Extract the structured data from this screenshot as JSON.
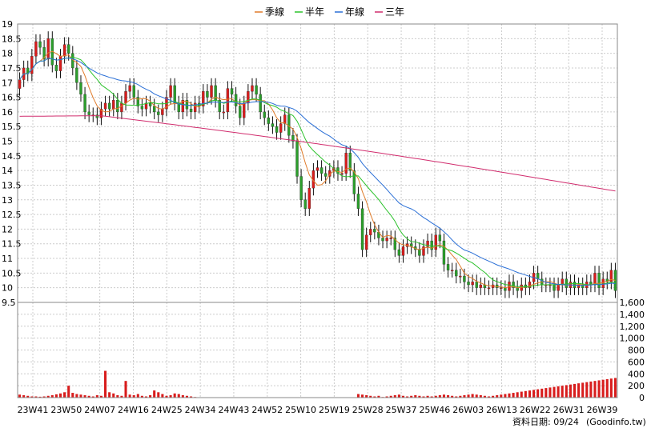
{
  "chart_data": [
    {
      "type": "candlestick",
      "title": "",
      "xlabel": "",
      "ylabel": "",
      "ylim": [
        9.5,
        19
      ],
      "y_ticks": [
        "9.5",
        "10",
        "10.5",
        "11",
        "11.5",
        "12",
        "12.5",
        "13",
        "13.5",
        "14",
        "14.5",
        "15",
        "15.5",
        "16",
        "16.5",
        "17",
        "17.5",
        "18",
        "18.5",
        "19"
      ],
      "x_ticks": [
        "23W41",
        "23W50",
        "24W07",
        "24W16",
        "24W25",
        "24W34",
        "24W43",
        "24W52",
        "25W10",
        "25W19",
        "25W28",
        "25W37",
        "25W46",
        "26W03",
        "26W13",
        "26W22",
        "26W31",
        "26W39"
      ],
      "grid": true,
      "legend_position": "top",
      "legend": [
        {
          "label": "季線",
          "color": "#e07b2a"
        },
        {
          "label": "半年",
          "color": "#2cc22c"
        },
        {
          "label": "年線",
          "color": "#2a6fd6"
        },
        {
          "label": "三年",
          "color": "#d12d6e"
        }
      ],
      "colors": {
        "up": "#d81c1c",
        "down": "#2b9e2b",
        "grid": "#cccccc"
      },
      "close": [
        17.1,
        17.5,
        17.3,
        17.9,
        18.4,
        18.2,
        17.8,
        18.5,
        17.6,
        17.4,
        17.9,
        18.3,
        18.0,
        17.5,
        17.0,
        16.6,
        16.0,
        15.9,
        15.9,
        15.8,
        16.1,
        16.3,
        16.1,
        16.4,
        16.0,
        16.3,
        16.7,
        16.9,
        16.5,
        16.2,
        16.1,
        16.3,
        16.2,
        16.0,
        15.9,
        16.1,
        16.5,
        16.9,
        16.3,
        16.0,
        16.4,
        16.1,
        16.0,
        16.3,
        16.2,
        16.7,
        16.5,
        16.9,
        16.4,
        16.0,
        16.0,
        16.8,
        16.6,
        16.2,
        15.8,
        16.3,
        16.7,
        16.9,
        16.6,
        16.0,
        15.8,
        15.6,
        15.5,
        15.3,
        15.6,
        15.9,
        15.2,
        15.0,
        13.8,
        13.0,
        12.7,
        13.4,
        14.0,
        14.1,
        13.9,
        13.8,
        14.0,
        14.1,
        13.9,
        13.9,
        14.6,
        14.0,
        13.2,
        12.7,
        11.3,
        11.8,
        12.0,
        11.9,
        11.7,
        11.6,
        11.7,
        11.7,
        11.3,
        11.1,
        11.4,
        11.5,
        11.4,
        11.3,
        11.1,
        11.4,
        11.6,
        11.3,
        11.8,
        11.6,
        10.8,
        10.6,
        10.6,
        10.4,
        10.4,
        10.2,
        10.1,
        10.2,
        10.0,
        10.1,
        10.0,
        10.0,
        10.1,
        10.0,
        10.0,
        9.9,
        10.2,
        10.0,
        9.9,
        10.1,
        10.0,
        10.2,
        10.5,
        10.3,
        10.1,
        10.1,
        10.1,
        9.9,
        10.1,
        10.3,
        10.0,
        10.2,
        10.0,
        10.1,
        10.0,
        10.2,
        10.1,
        10.5,
        10.0,
        10.3,
        10.2,
        10.6,
        9.9
      ],
      "volume": [
        50,
        40,
        30,
        20,
        20,
        15,
        20,
        30,
        40,
        55,
        70,
        90,
        200,
        80,
        60,
        50,
        40,
        30,
        20,
        40,
        30,
        450,
        90,
        70,
        40,
        30,
        280,
        50,
        40,
        60,
        30,
        20,
        40,
        120,
        90,
        60,
        30,
        40,
        70,
        60,
        40,
        30,
        20,
        10,
        5,
        0,
        0,
        0,
        0,
        0,
        0,
        0,
        0,
        0,
        0,
        0,
        0,
        0,
        0,
        0,
        0,
        0,
        0,
        0,
        0,
        0,
        0,
        0,
        0,
        0,
        0,
        0,
        0,
        0,
        0,
        0,
        0,
        0,
        0,
        0,
        0,
        0,
        0,
        60,
        50,
        40,
        30,
        20,
        30,
        10,
        20,
        30,
        40,
        50,
        30,
        20,
        30,
        40,
        30,
        20,
        30,
        20,
        30,
        40,
        50,
        40,
        30,
        20,
        30,
        40,
        50,
        60,
        50,
        40,
        30,
        20,
        30,
        40,
        50,
        60,
        70,
        80,
        90,
        100,
        110,
        120,
        130,
        140,
        150,
        160,
        170,
        180,
        190,
        200,
        210,
        220,
        230,
        240,
        250,
        260,
        270,
        280,
        290,
        300,
        310,
        320,
        330
      ]
    }
  ],
  "volume_axis": {
    "ylim": [
      0,
      1600
    ],
    "ticks": [
      "0",
      "200",
      "400",
      "600",
      "800",
      "1,000",
      "1,200",
      "1,400",
      "1,600"
    ]
  },
  "footer": {
    "date_label": "資料日期: 09/24",
    "source": "(Goodinfo.tw)"
  }
}
